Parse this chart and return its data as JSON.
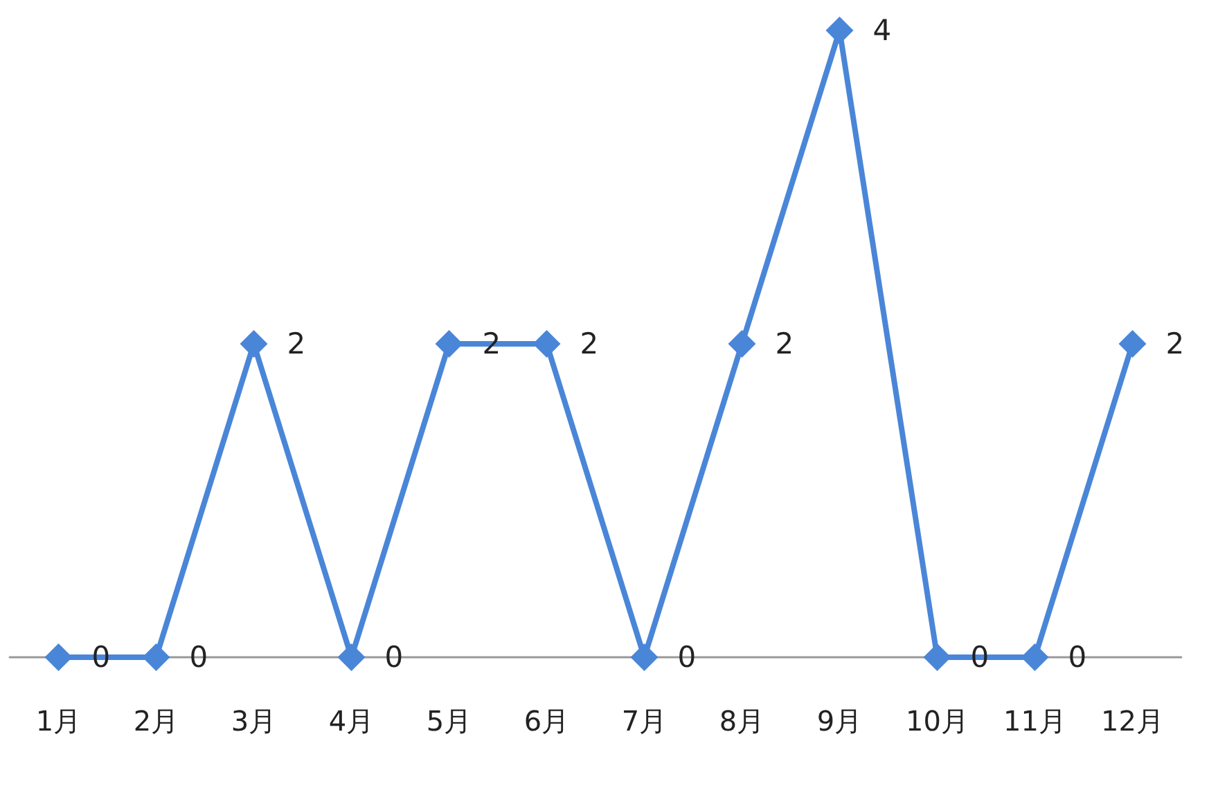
{
  "chart_data": {
    "type": "line",
    "categories": [
      "1月",
      "2月",
      "3月",
      "4月",
      "5月",
      "6月",
      "7月",
      "8月",
      "9月",
      "10月",
      "11月",
      "12月"
    ],
    "series": [
      {
        "color": "#4a86d8",
        "values": [
          0,
          0,
          2,
          0,
          2,
          2,
          0,
          2,
          4,
          0,
          0,
          2
        ]
      }
    ],
    "data_labels": true,
    "marker": "diamond",
    "line_style": "solid",
    "grid": false
  }
}
